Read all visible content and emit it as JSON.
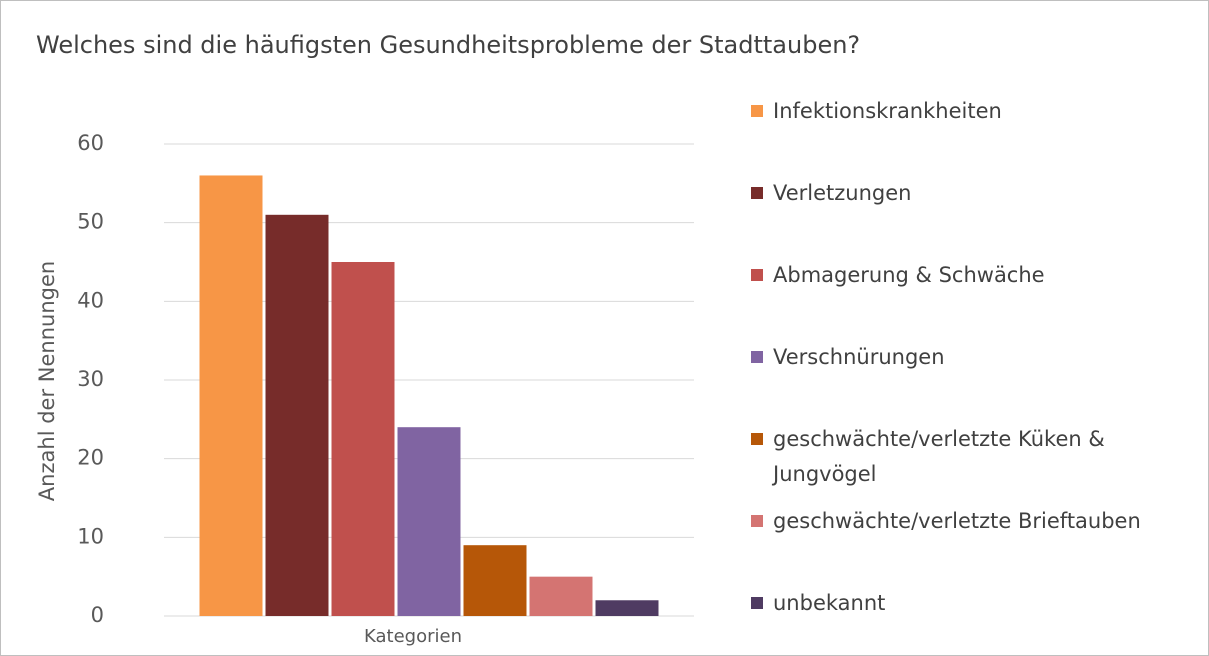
{
  "chart_data": {
    "type": "bar",
    "title": "Welches sind die häufigsten Gesundheitsprobleme der Stadttauben?",
    "xlabel": "Kategorien",
    "ylabel": "Anzahl der Nennungen",
    "categories": [
      "Kategorien"
    ],
    "series": [
      {
        "name": "Infektionskrankheiten",
        "color": "#f79646",
        "values": [
          56
        ]
      },
      {
        "name": "Verletzungen",
        "color": "#772c2a",
        "values": [
          51
        ]
      },
      {
        "name": "Abmagerung & Schwäche",
        "color": "#c0504d",
        "values": [
          45
        ]
      },
      {
        "name": "Verschnürungen",
        "color": "#8064a2",
        "values": [
          24
        ]
      },
      {
        "name": "geschwächte/verletzte Küken & Jungvögel",
        "color": "#b65708",
        "values": [
          9
        ]
      },
      {
        "name": "geschwächte/verletzte Brieftauben",
        "color": "#d47472",
        "values": [
          5
        ]
      },
      {
        "name": "unbekannt",
        "color": "#4f3b62",
        "values": [
          2
        ]
      }
    ],
    "ylim": [
      0,
      60
    ],
    "yticks": [
      0,
      10,
      20,
      30,
      40,
      50,
      60
    ],
    "grid": true,
    "legend": "right"
  }
}
